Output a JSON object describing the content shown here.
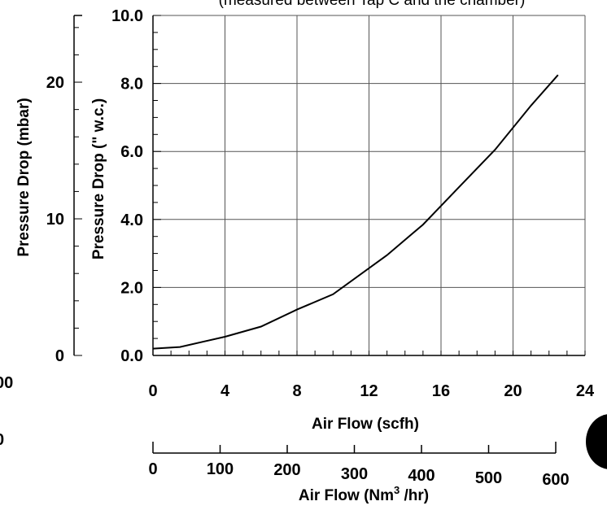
{
  "chart_data": {
    "type": "line",
    "title": "(measured between Tap C and the chamber)",
    "xlabel": "Air Flow (scfh)",
    "ylabel": "Pressure Drop (\" w.c.)",
    "secondary_ylabel": "Pressure Drop (mbar)",
    "secondary_xlabel_parts": [
      "Air Flow (Nm",
      "3",
      " /hr)"
    ],
    "xlim": [
      0,
      24
    ],
    "ylim": [
      0,
      10
    ],
    "x_ticks": [
      "0",
      "4",
      "8",
      "12",
      "16",
      "20",
      "24"
    ],
    "y_ticks": [
      "0.0",
      "2.0",
      "4.0",
      "6.0",
      "8.0",
      "10.0"
    ],
    "secondary_y_ticks": [
      "0",
      "10",
      "20"
    ],
    "secondary_x_ticks": [
      "0",
      "100",
      "200",
      "300",
      "400",
      "500",
      "600"
    ],
    "left_edge_labels": [
      "00",
      "0"
    ],
    "grid": true,
    "series": [
      {
        "x": [
          0,
          1.5,
          4,
          6,
          8,
          10,
          13,
          15,
          17,
          19,
          21,
          22.5
        ],
        "y": [
          0.2,
          0.25,
          0.55,
          0.85,
          1.35,
          1.8,
          2.95,
          3.85,
          4.95,
          6.05,
          7.35,
          8.25
        ]
      }
    ]
  },
  "colors": {
    "line": "#000000",
    "grid": "#555555",
    "background": "#ffffff",
    "marker": "#000000"
  }
}
